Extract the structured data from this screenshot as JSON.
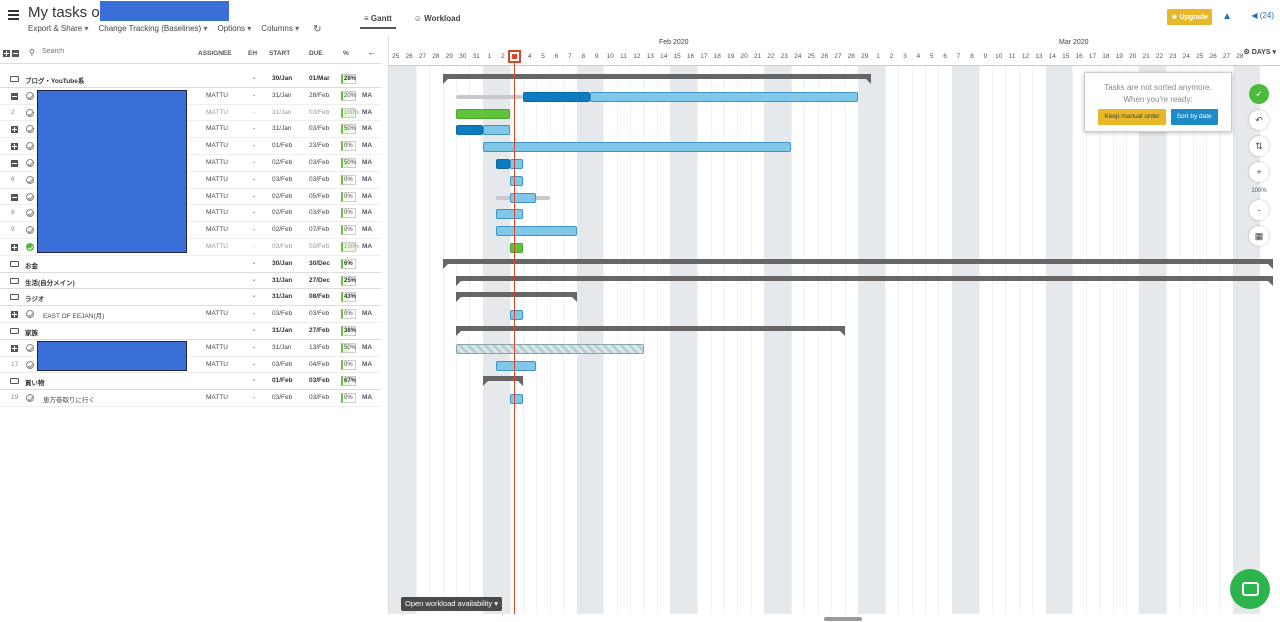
{
  "header": {
    "title": "My tasks on",
    "menu": [
      {
        "label": "Export & Share"
      },
      {
        "label": "Change Tracking (Baselines)"
      },
      {
        "label": "Options"
      },
      {
        "label": "Columns"
      }
    ],
    "tabs": [
      {
        "label": "Gantt",
        "icon": "gantt-icon",
        "active": true
      },
      {
        "label": "Workload",
        "icon": "users-icon",
        "active": false
      }
    ],
    "upgrade_label": "Upgrade",
    "announcements_count": "(24)"
  },
  "task_list": {
    "search_placeholder": "Search",
    "columns": [
      "ASSIGNEE",
      "EH",
      "START",
      "DUE",
      "%"
    ],
    "rows": [
      {
        "type": "group",
        "name": "ブログ・YouTube系",
        "assignee": "",
        "eh": "-",
        "start": "30/Jan",
        "due": "01/Mar",
        "pct": "28%",
        "pct_value": 28
      },
      {
        "type": "task",
        "marker": "minus",
        "name": "",
        "assignee": "MATTU",
        "eh": "-",
        "start": "31/Jan",
        "due": "28/Feb",
        "pct": "20%",
        "pct_value": 20,
        "ma": "MA"
      },
      {
        "type": "task",
        "marker": "2",
        "name": "",
        "assignee": "MATTU",
        "eh": "-",
        "start": "31/Jan",
        "due": "03/Feb",
        "pct": "100%",
        "pct_value": 100,
        "ma": "MA",
        "done": true
      },
      {
        "type": "task",
        "marker": "plus",
        "name": "",
        "assignee": "MATTU",
        "eh": "-",
        "start": "31/Jan",
        "due": "03/Feb",
        "pct": "50%",
        "pct_value": 50,
        "ma": "MA"
      },
      {
        "type": "task",
        "marker": "plus",
        "name": "",
        "assignee": "MATTU",
        "eh": "-",
        "start": "01/Feb",
        "due": "23/Feb",
        "pct": "0%",
        "pct_value": 0,
        "ma": "MA"
      },
      {
        "type": "task",
        "marker": "minus",
        "name": "",
        "assignee": "MATTU",
        "eh": "-",
        "start": "02/Feb",
        "due": "03/Feb",
        "pct": "50%",
        "pct_value": 50,
        "ma": "MA"
      },
      {
        "type": "task",
        "marker": "6",
        "name": "",
        "assignee": "MATTU",
        "eh": "-",
        "start": "03/Feb",
        "due": "03/Feb",
        "pct": "0%",
        "pct_value": 0,
        "ma": "MA"
      },
      {
        "type": "task",
        "marker": "minus",
        "name": "",
        "assignee": "MATTU",
        "eh": "-",
        "start": "02/Feb",
        "due": "05/Feb",
        "pct": "0%",
        "pct_value": 0,
        "ma": "MA"
      },
      {
        "type": "task",
        "marker": "8",
        "name": "",
        "assignee": "MATTU",
        "eh": "-",
        "start": "02/Feb",
        "due": "03/Feb",
        "pct": "0%",
        "pct_value": 0,
        "ma": "MA"
      },
      {
        "type": "task",
        "marker": "9",
        "name": "",
        "assignee": "MATTU",
        "eh": "-",
        "start": "02/Feb",
        "due": "07/Feb",
        "pct": "0%",
        "pct_value": 0,
        "ma": "MA"
      },
      {
        "type": "task",
        "marker": "plus",
        "name": "",
        "assignee": "MATTU",
        "eh": "-",
        "start": "03/Feb",
        "due": "03/Feb",
        "pct": "100%",
        "pct_value": 100,
        "ma": "MA",
        "done": true,
        "check_green": true
      },
      {
        "type": "group",
        "name": "お金",
        "assignee": "",
        "eh": "-",
        "start": "30/Jan",
        "due": "30/Dec",
        "pct": "6%",
        "pct_value": 6
      },
      {
        "type": "group",
        "name": "生活(自分メイン)",
        "assignee": "",
        "eh": "-",
        "start": "31/Jan",
        "due": "27/Dec",
        "pct": "25%",
        "pct_value": 25
      },
      {
        "type": "group",
        "name": "ラジオ",
        "assignee": "",
        "eh": "-",
        "start": "31/Jan",
        "due": "08/Feb",
        "pct": "43%",
        "pct_value": 43
      },
      {
        "type": "task",
        "marker": "plus",
        "name": "EAST OF EEJAN(月)",
        "assignee": "MATTU",
        "eh": "-",
        "start": "03/Feb",
        "due": "03/Feb",
        "pct": "0%",
        "pct_value": 0,
        "ma": "MA"
      },
      {
        "type": "group",
        "name": "家族",
        "assignee": "",
        "eh": "-",
        "start": "31/Jan",
        "due": "27/Feb",
        "pct": "38%",
        "pct_value": 38
      },
      {
        "type": "task",
        "marker": "plus",
        "name": "",
        "assignee": "MATTU",
        "eh": "-",
        "start": "31/Jan",
        "due": "13/Feb",
        "pct": "50%",
        "pct_value": 50,
        "ma": "MA"
      },
      {
        "type": "task",
        "marker": "17",
        "name": "",
        "assignee": "MATTU",
        "eh": "-",
        "start": "03/Feb",
        "due": "04/Feb",
        "pct": "0%",
        "pct_value": 0,
        "ma": "MA"
      },
      {
        "type": "group",
        "name": "買い物",
        "assignee": "",
        "eh": "-",
        "start": "01/Feb",
        "due": "03/Feb",
        "pct": "67%",
        "pct_value": 67
      },
      {
        "type": "task",
        "marker": "19",
        "name": "恵方巻取りに行く",
        "assignee": "MATTU",
        "eh": "-",
        "start": "03/Feb",
        "due": "03/Feb",
        "pct": "0%",
        "pct_value": 0,
        "ma": "MA"
      }
    ]
  },
  "timeline": {
    "months": [
      {
        "label": "Feb 2020"
      },
      {
        "label": "Mar 2020"
      }
    ],
    "days": [
      "25",
      "26",
      "27",
      "28",
      "29",
      "30",
      "31",
      "1",
      "2",
      "3",
      "4",
      "5",
      "6",
      "7",
      "8",
      "9",
      "10",
      "11",
      "12",
      "13",
      "14",
      "15",
      "16",
      "17",
      "18",
      "19",
      "20",
      "21",
      "22",
      "23",
      "24",
      "25",
      "26",
      "27",
      "28",
      "29",
      "1",
      "2",
      "3",
      "4",
      "5",
      "6",
      "7",
      "8",
      "9",
      "10",
      "11",
      "12",
      "13",
      "14",
      "15",
      "16",
      "17",
      "18",
      "19",
      "20",
      "21",
      "22",
      "23",
      "24",
      "25",
      "26",
      "27",
      "28"
    ],
    "scale_label": "DAYS"
  },
  "gantt_bars": [
    {
      "row": 0,
      "kind": "summary",
      "start": 4,
      "end": 36
    },
    {
      "row": 1,
      "kind": "grey",
      "start": 5,
      "end": 10
    },
    {
      "row": 1,
      "kind": "dark",
      "start": 10,
      "end": 15
    },
    {
      "row": 1,
      "kind": "light",
      "start": 15,
      "end": 35
    },
    {
      "row": 2,
      "kind": "green",
      "start": 5,
      "end": 9
    },
    {
      "row": 3,
      "kind": "dark",
      "start": 5,
      "end": 7
    },
    {
      "row": 3,
      "kind": "light",
      "start": 7,
      "end": 9
    },
    {
      "row": 4,
      "kind": "light",
      "start": 7,
      "end": 30
    },
    {
      "row": 5,
      "kind": "dark",
      "start": 8,
      "end": 9
    },
    {
      "row": 5,
      "kind": "light",
      "start": 9,
      "end": 10
    },
    {
      "row": 6,
      "kind": "light",
      "start": 9,
      "end": 10
    },
    {
      "row": 7,
      "kind": "grey",
      "start": 8,
      "end": 12
    },
    {
      "row": 7,
      "kind": "light",
      "start": 9,
      "end": 11
    },
    {
      "row": 8,
      "kind": "light",
      "start": 8,
      "end": 10
    },
    {
      "row": 9,
      "kind": "light",
      "start": 8,
      "end": 14
    },
    {
      "row": 10,
      "kind": "green",
      "start": 9,
      "end": 10
    },
    {
      "row": 11,
      "kind": "summary",
      "start": 4,
      "end": 66
    },
    {
      "row": 12,
      "kind": "summary",
      "start": 5,
      "end": 66
    },
    {
      "row": 13,
      "kind": "summary",
      "start": 5,
      "end": 14
    },
    {
      "row": 14,
      "kind": "light",
      "start": 9,
      "end": 10
    },
    {
      "row": 15,
      "kind": "summary",
      "start": 5,
      "end": 34
    },
    {
      "row": 16,
      "kind": "greystripe",
      "start": 5,
      "end": 19
    },
    {
      "row": 17,
      "kind": "light",
      "start": 8,
      "end": 11
    },
    {
      "row": 18,
      "kind": "summary",
      "start": 7,
      "end": 10
    },
    {
      "row": 19,
      "kind": "light",
      "start": 9,
      "end": 10
    }
  ],
  "sort_popup": {
    "message_line1": "Tasks are not sorted anymore.",
    "message_line2": "When you're ready:",
    "keep_label": "Keep manual order",
    "sort_label": "Sort by date"
  },
  "tools": {
    "zoom": "100%"
  },
  "footer": {
    "workload_label": "Open workload availability"
  },
  "colors": {
    "accent_blue": "#0e7bc0",
    "bar_light": "#80c8ea",
    "bar_green": "#5fc33c",
    "today_red": "#d9472b",
    "upgrade": "#e6b82a"
  }
}
